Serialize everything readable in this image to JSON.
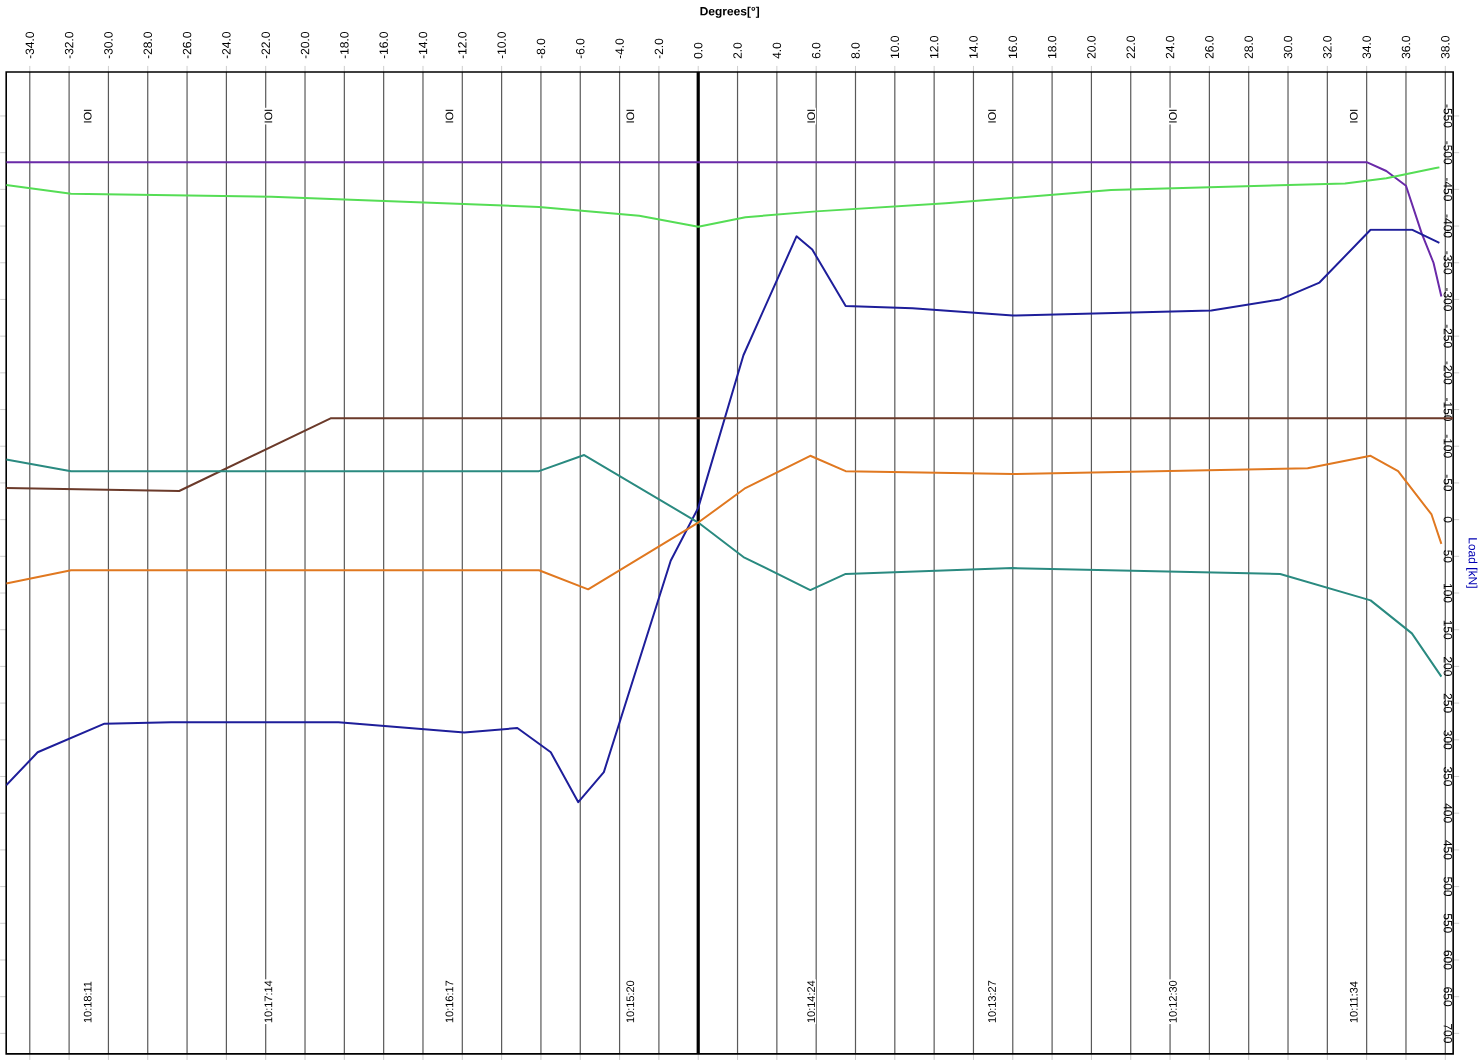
{
  "chart_data": {
    "type": "line",
    "xlabel": "Degrees[°]",
    "ylabel": "Load [kN]",
    "xlim": [
      -35.2,
      38.4
    ],
    "ylim": [
      728,
      -610
    ],
    "xticks": [
      {
        "value": -34,
        "label": "-34.0"
      },
      {
        "value": -32,
        "label": "-32.0"
      },
      {
        "value": -30,
        "label": "-30.0"
      },
      {
        "value": -28,
        "label": "-28.0"
      },
      {
        "value": -26,
        "label": "-26.0"
      },
      {
        "value": -24,
        "label": "-24.0"
      },
      {
        "value": -22,
        "label": "-22.0"
      },
      {
        "value": -20,
        "label": "-20.0"
      },
      {
        "value": -18,
        "label": "-18.0"
      },
      {
        "value": -16,
        "label": "-16.0"
      },
      {
        "value": -14,
        "label": "-14.0"
      },
      {
        "value": -12,
        "label": "-12.0"
      },
      {
        "value": -10,
        "label": "-10.0"
      },
      {
        "value": -8,
        "label": "-8.0"
      },
      {
        "value": -6,
        "label": "-6.0"
      },
      {
        "value": -4,
        "label": "-4.0"
      },
      {
        "value": -2,
        "label": "-2.0"
      },
      {
        "value": 0,
        "label": "0.0"
      },
      {
        "value": 2,
        "label": "2.0"
      },
      {
        "value": 4,
        "label": "4.0"
      },
      {
        "value": 6,
        "label": "6.0"
      },
      {
        "value": 8,
        "label": "8.0"
      },
      {
        "value": 10,
        "label": "10.0"
      },
      {
        "value": 12,
        "label": "12.0"
      },
      {
        "value": 14,
        "label": "14.0"
      },
      {
        "value": 16,
        "label": "16.0"
      },
      {
        "value": 18,
        "label": "18.0"
      },
      {
        "value": 20,
        "label": "20.0"
      },
      {
        "value": 22,
        "label": "22.0"
      },
      {
        "value": 24,
        "label": "24.0"
      },
      {
        "value": 26,
        "label": "26.0"
      },
      {
        "value": 28,
        "label": "28.0"
      },
      {
        "value": 30,
        "label": "30.0"
      },
      {
        "value": 32,
        "label": "32.0"
      },
      {
        "value": 34,
        "label": "34.0"
      },
      {
        "value": 36,
        "label": "36.0"
      },
      {
        "value": 38,
        "label": "38.0"
      }
    ],
    "yticks": [
      -550,
      -500,
      -450,
      -400,
      -350,
      -300,
      -250,
      -200,
      -150,
      -100,
      -50,
      0,
      50,
      100,
      150,
      200,
      250,
      300,
      350,
      400,
      450,
      500,
      550,
      600,
      650,
      700
    ],
    "grid": "x",
    "marker": "none",
    "line_style": "solid",
    "ref_lines": [
      {
        "axis": "x",
        "value": 0,
        "color": "#000000"
      }
    ],
    "annotations": [
      "IOI",
      "IOI",
      "IOI",
      "IOI",
      "IOI",
      "IOI",
      "IOI",
      "IOI",
      "10:18:11",
      "10:17:14",
      "10:16:17",
      "10:15:20",
      "10:14:24",
      "10:13:27",
      "10:12:30",
      "10:11:34"
    ],
    "series": [
      {
        "color": "#6a2aa8",
        "x": [
          -35.2,
          0,
          34,
          35,
          36,
          36.8,
          37.4,
          37.8
        ],
        "values": [
          -487,
          -487,
          -487,
          -475,
          -455,
          -390,
          -350,
          -304
        ]
      },
      {
        "color": "#55dd55",
        "x": [
          -35.2,
          -31.9,
          -21.7,
          -8.1,
          -3,
          0,
          2.4,
          6,
          12.6,
          21,
          32.9,
          35,
          37.7
        ],
        "values": [
          -456,
          -444,
          -440,
          -426,
          -414,
          -399,
          -412,
          -420,
          -431,
          -449,
          -458,
          -465,
          -480
        ]
      },
      {
        "color": "#1e1e9a",
        "x": [
          -35.2,
          -33.6,
          -30.2,
          -26.8,
          -18.3,
          -11.9,
          -9.2,
          -7.5,
          -6.1,
          -4.8,
          -1.4,
          0,
          2.3,
          5,
          5.8,
          7.5,
          10.9,
          16,
          26.1,
          29.6,
          31.6,
          34.2,
          36.3,
          37.7
        ],
        "values": [
          362,
          317,
          278,
          276,
          276,
          290,
          284,
          317,
          385,
          344,
          56,
          -16,
          -224,
          -386,
          -368,
          -291,
          -288,
          -278,
          -285,
          -300,
          -323,
          -395,
          -395,
          -377
        ]
      },
      {
        "color": "#6b3a2a",
        "x": [
          -35.2,
          -26.4,
          -18.7,
          38.4
        ],
        "values": [
          -43,
          -39,
          -138,
          -138
        ]
      },
      {
        "color": "#2a8a80",
        "x": [
          -35.2,
          -31.9,
          -8.1,
          -5.8,
          0,
          2.3,
          5.7,
          7.5,
          16,
          29.6,
          34.2,
          36.3,
          37.8
        ],
        "values": [
          -82,
          -66,
          -66,
          -88,
          4,
          51,
          96,
          74,
          66,
          74,
          110,
          155,
          214
        ]
      },
      {
        "color": "#e07820",
        "x": [
          -35.2,
          -31.9,
          -8.1,
          -5.6,
          0,
          2.4,
          5.7,
          7.5,
          16,
          31,
          34.2,
          35.6,
          37.3,
          37.8
        ],
        "values": [
          87,
          69,
          69,
          95,
          4,
          -43,
          -87,
          -66,
          -62,
          -70,
          -87,
          -66,
          -7,
          33
        ]
      }
    ]
  }
}
